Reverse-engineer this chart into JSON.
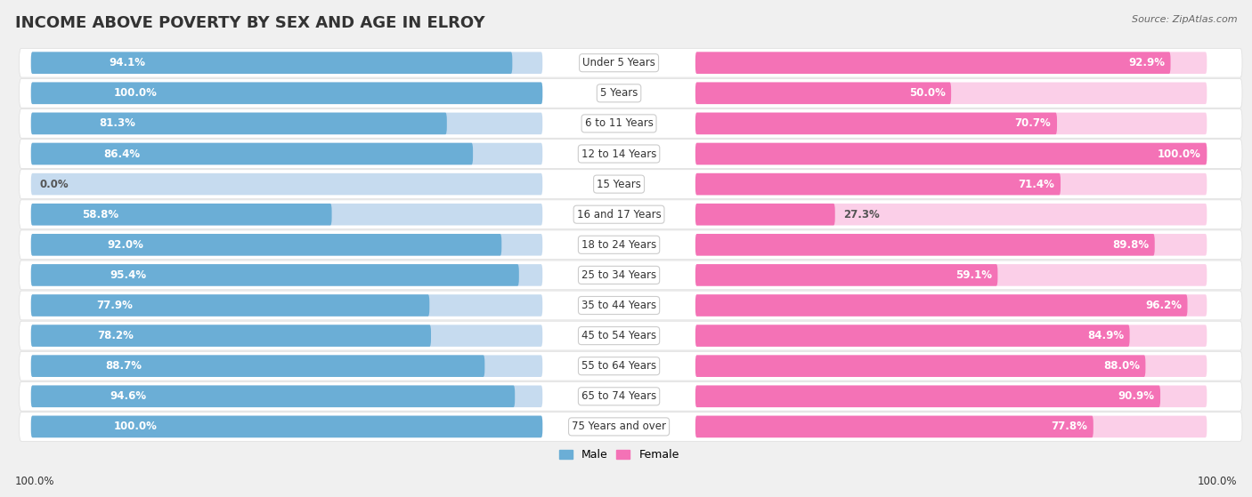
{
  "title": "INCOME ABOVE POVERTY BY SEX AND AGE IN ELROY",
  "source": "Source: ZipAtlas.com",
  "categories": [
    "Under 5 Years",
    "5 Years",
    "6 to 11 Years",
    "12 to 14 Years",
    "15 Years",
    "16 and 17 Years",
    "18 to 24 Years",
    "25 to 34 Years",
    "35 to 44 Years",
    "45 to 54 Years",
    "55 to 64 Years",
    "65 to 74 Years",
    "75 Years and over"
  ],
  "male_values": [
    94.1,
    100.0,
    81.3,
    86.4,
    0.0,
    58.8,
    92.0,
    95.4,
    77.9,
    78.2,
    88.7,
    94.6,
    100.0
  ],
  "female_values": [
    92.9,
    50.0,
    70.7,
    100.0,
    71.4,
    27.3,
    89.8,
    59.1,
    96.2,
    84.9,
    88.0,
    90.9,
    77.8
  ],
  "male_color": "#6BAED6",
  "male_color_light": "#C6DBEF",
  "female_color": "#F472B6",
  "female_color_light": "#FBCFE8",
  "row_bg_color": "#FFFFFF",
  "outer_bg_color": "#F0F0F0",
  "title_fontsize": 13,
  "label_fontsize": 8.5,
  "value_fontsize": 8.5,
  "legend_fontsize": 9,
  "source_fontsize": 8
}
